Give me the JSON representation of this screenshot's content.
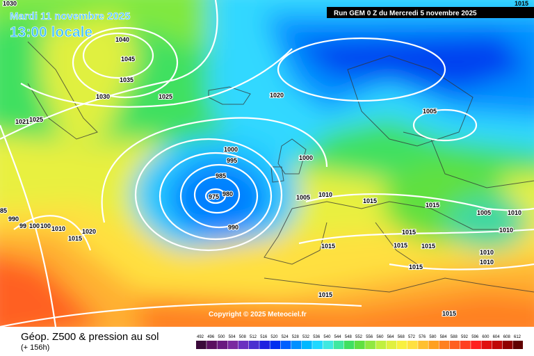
{
  "header": {
    "date_label": "Mardi 11 novembre 2025",
    "time_label": "13:00 locale",
    "run_label": "Run GEM 0 Z du Mercredi 5 novembre 2025",
    "corner_value": "1015"
  },
  "copyright": "Copyright © 2025 Meteociel.fr",
  "caption": "Géop. Z500 & pression au sol",
  "forecast_horizon": "(+ 156h)",
  "isobar_labels": [
    "1030",
    "1040",
    "1045",
    "1035",
    "1030",
    "1025",
    "1021",
    "1025",
    "1020",
    "1005",
    "1000",
    "995",
    "985",
    "975",
    "980",
    "1000",
    "990",
    "1005",
    "1010",
    "1015",
    "1015",
    "1005",
    "1010",
    "1010",
    "1015",
    "1015",
    "1015",
    "1015",
    "1010",
    "1010",
    "1015",
    "1015",
    "85",
    "990",
    "99",
    "100",
    "100",
    "1010",
    "1020",
    "1015"
  ],
  "legend": {
    "values": [
      "492",
      "496",
      "500",
      "504",
      "508",
      "512",
      "516",
      "520",
      "524",
      "528",
      "532",
      "536",
      "540",
      "544",
      "548",
      "552",
      "556",
      "560",
      "564",
      "568",
      "572",
      "576",
      "580",
      "584",
      "588",
      "592",
      "596",
      "600",
      "604",
      "608",
      "612"
    ],
    "colors": [
      "#3a0a3a",
      "#5a1060",
      "#6a1a80",
      "#7a2aa0",
      "#6a30c0",
      "#4a30d0",
      "#2020e0",
      "#0030f0",
      "#0060ff",
      "#0090ff",
      "#00b8ff",
      "#20d8ff",
      "#40e8e0",
      "#40e8a0",
      "#40e060",
      "#60e040",
      "#90e840",
      "#c0f040",
      "#e0f040",
      "#f8f040",
      "#ffe040",
      "#ffc030",
      "#ffa020",
      "#ff8020",
      "#ff6020",
      "#ff4020",
      "#ff2020",
      "#e01010",
      "#c00808",
      "#900000",
      "#600000"
    ]
  }
}
